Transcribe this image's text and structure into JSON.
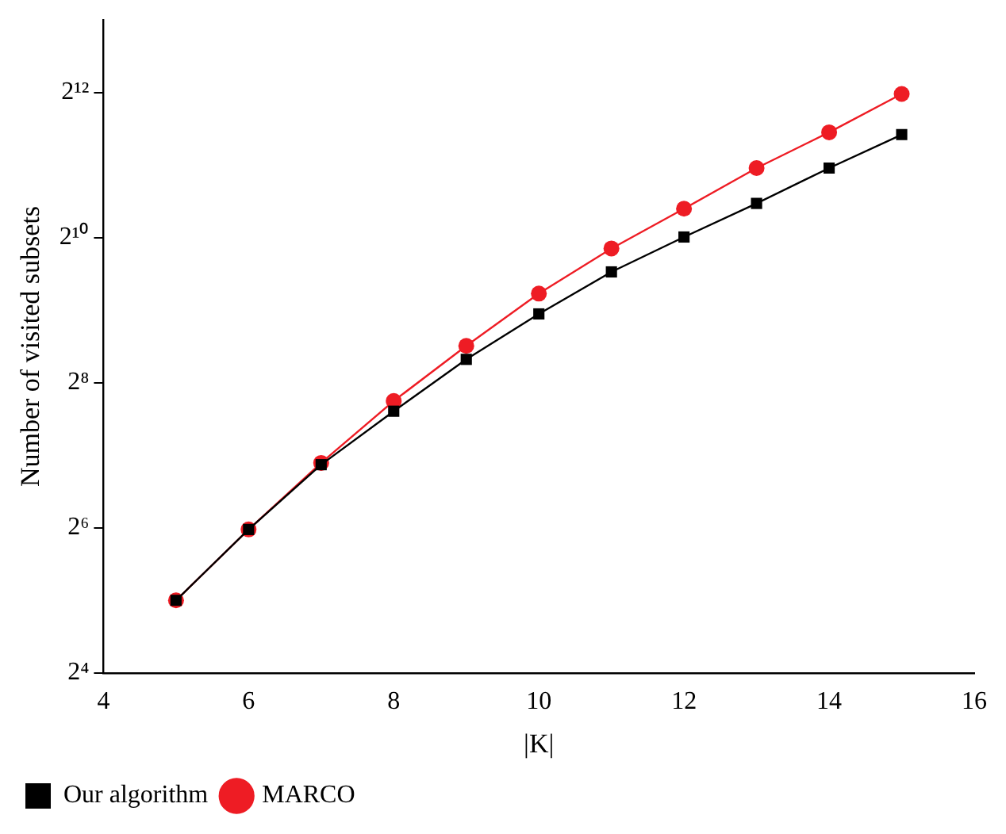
{
  "chart_data": {
    "type": "line",
    "xlabel": "|K|",
    "ylabel": "Number of visited subsets",
    "x": [
      5,
      6,
      7,
      8,
      9,
      10,
      11,
      12,
      13,
      14,
      15
    ],
    "series": [
      {
        "name": "Our algorithm",
        "color": "#000000",
        "marker": "square",
        "values": [
          32,
          63,
          117,
          195,
          320,
          494,
          738,
          1030,
          1420,
          1990,
          2740
        ]
      },
      {
        "name": "MARCO",
        "color": "#ee1c24",
        "marker": "circle",
        "values": [
          32,
          63,
          119,
          215,
          364,
          600,
          923,
          1350,
          1990,
          2800,
          4040
        ]
      }
    ],
    "xlim": [
      4,
      16
    ],
    "xticks": [
      4,
      6,
      8,
      10,
      12,
      14,
      16
    ],
    "log": true,
    "ylim": [
      16,
      8192
    ],
    "yticks": [
      {
        "value": 16,
        "label": "2⁴"
      },
      {
        "value": 64,
        "label": "2⁶"
      },
      {
        "value": 256,
        "label": "2⁸"
      },
      {
        "value": 1024,
        "label": "2¹⁰"
      },
      {
        "value": 4096,
        "label": "2¹²"
      }
    ],
    "grid": false,
    "legend": "bottom left",
    "line_style": "solid"
  }
}
